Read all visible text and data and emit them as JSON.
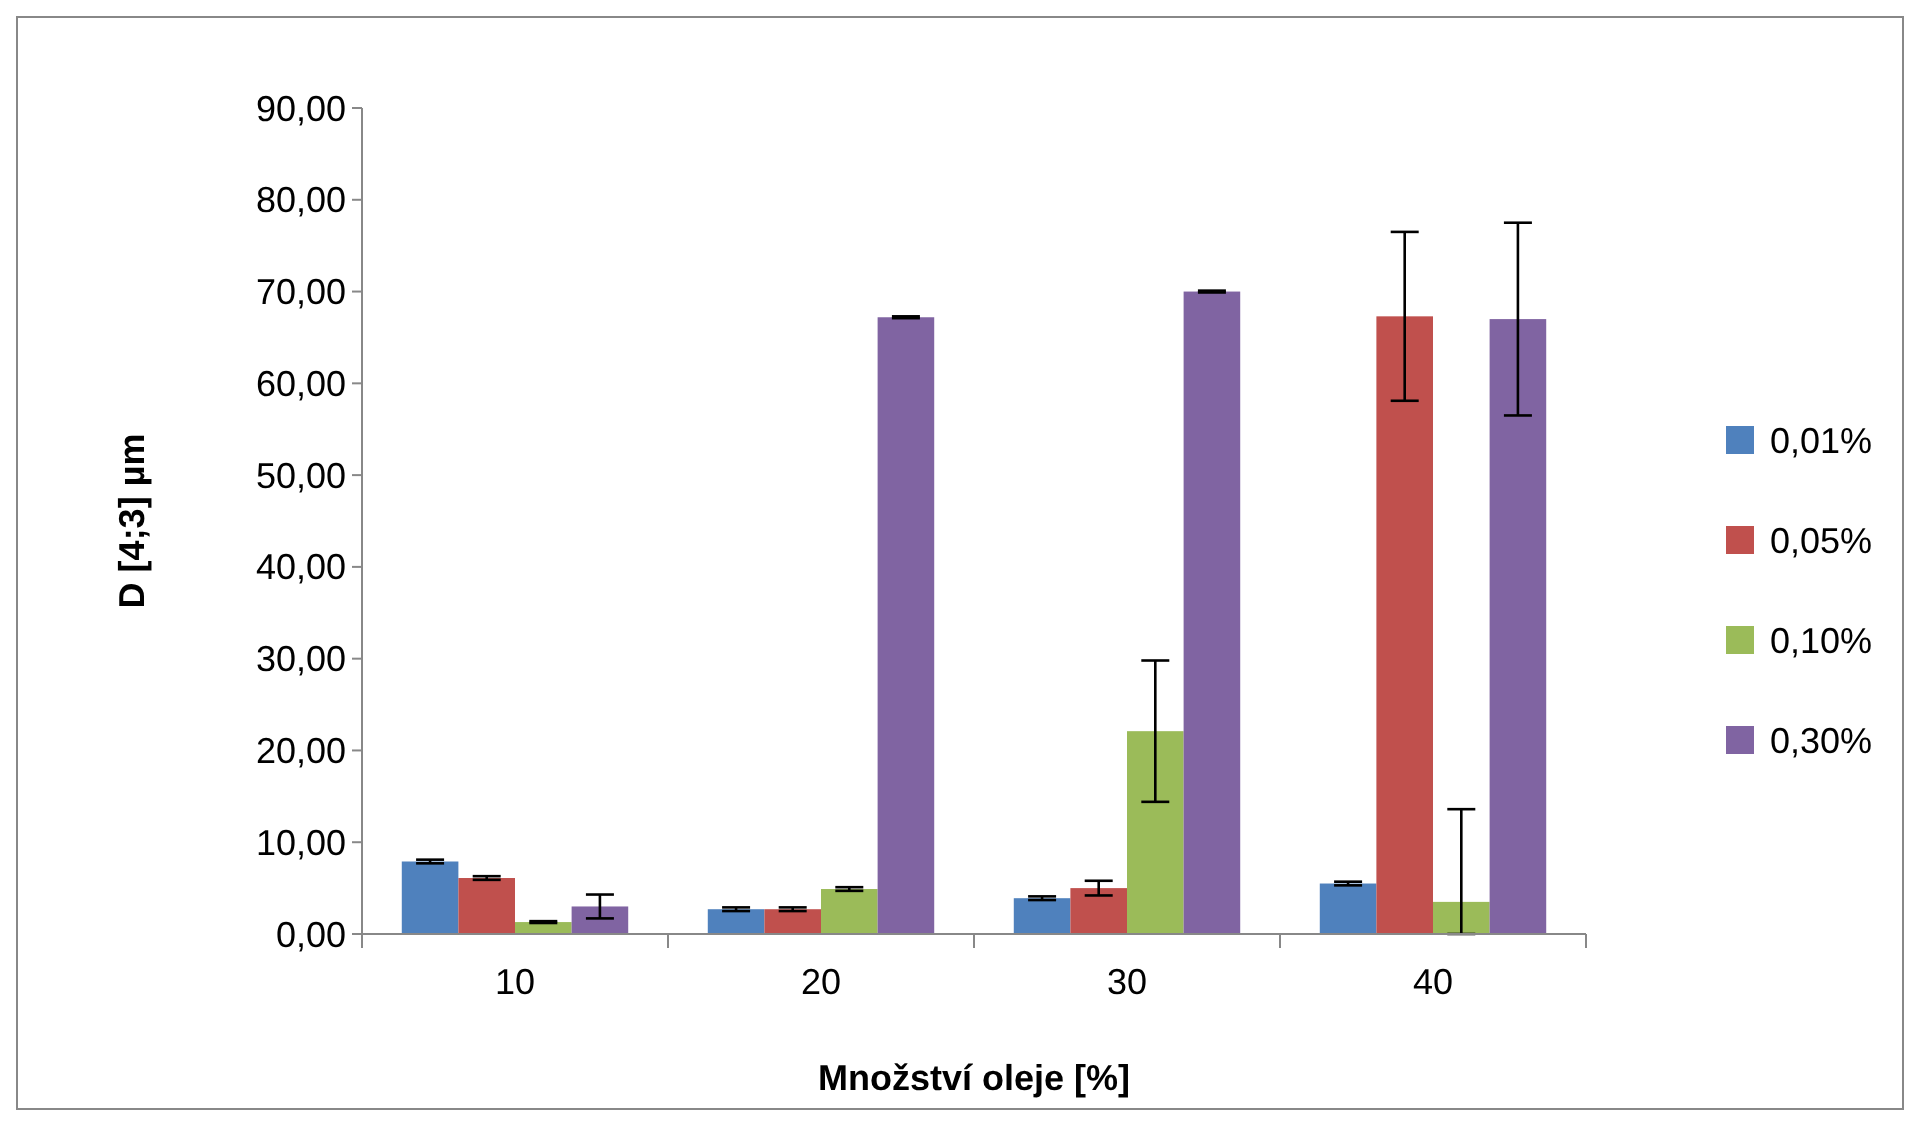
{
  "chart_data": {
    "type": "bar",
    "xlabel": "Množství oleje [%]",
    "ylabel": "D [4;3] µm",
    "categories": [
      "10",
      "20",
      "30",
      "40"
    ],
    "series": [
      {
        "name": "0,01%",
        "color": "#4f81bd",
        "values": [
          7.9,
          2.7,
          3.9,
          5.5
        ],
        "errors": [
          0.2,
          0.2,
          0.2,
          0.2
        ]
      },
      {
        "name": "0,05%",
        "color": "#c0504d",
        "values": [
          6.1,
          2.7,
          5.0,
          67.3
        ],
        "errors": [
          0.2,
          0.2,
          0.8,
          9.2
        ]
      },
      {
        "name": "0,10%",
        "color": "#9bbb59",
        "values": [
          1.3,
          4.9,
          22.1,
          3.5
        ],
        "errors": [
          0.1,
          0.2,
          7.7,
          [
            0,
            13.6
          ]
        ]
      },
      {
        "name": "0,30%",
        "color": "#8064a2",
        "values": [
          3.0,
          67.2,
          70.0,
          67.0
        ],
        "errors": [
          1.3,
          0.1,
          0.1,
          10.5
        ]
      }
    ],
    "ylim": [
      0,
      90
    ],
    "yticks": [
      {
        "value": 0,
        "label": "0,00"
      },
      {
        "value": 10,
        "label": "10,00"
      },
      {
        "value": 20,
        "label": "20,00"
      },
      {
        "value": 30,
        "label": "30,00"
      },
      {
        "value": 40,
        "label": "40,00"
      },
      {
        "value": 50,
        "label": "50,00"
      },
      {
        "value": 60,
        "label": "60,00"
      },
      {
        "value": 70,
        "label": "70,00"
      },
      {
        "value": 80,
        "label": "80,00"
      },
      {
        "value": 90,
        "label": "90,00"
      }
    ],
    "legend": "right"
  }
}
